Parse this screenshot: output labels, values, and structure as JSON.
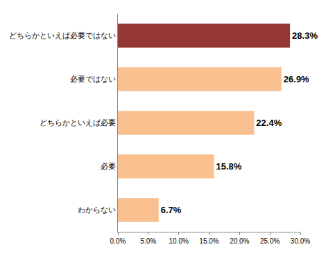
{
  "chart_data": {
    "type": "bar",
    "orientation": "horizontal",
    "categories": [
      "どちらかといえば必要ではない",
      "必要ではない",
      "どちらかといえば必要",
      "必要",
      "わからない"
    ],
    "values": [
      28.3,
      26.9,
      22.4,
      15.8,
      6.7
    ],
    "value_labels": [
      "28.3%",
      "26.9%",
      "22.4%",
      "15.8%",
      "6.7%"
    ],
    "colors": [
      "#953735",
      "#fac090",
      "#fac090",
      "#fac090",
      "#fac090"
    ],
    "xlim": [
      0,
      30
    ],
    "xticks": [
      {
        "value": 0,
        "label": "0.0%"
      },
      {
        "value": 5,
        "label": "5.0%"
      },
      {
        "value": 10,
        "label": "10.0%"
      },
      {
        "value": 15,
        "label": "15.0%"
      },
      {
        "value": 20,
        "label": "20.0%"
      },
      {
        "value": 25,
        "label": "25.0%"
      },
      {
        "value": 30,
        "label": "30.0%"
      }
    ],
    "grid": false,
    "data_labels": true
  }
}
